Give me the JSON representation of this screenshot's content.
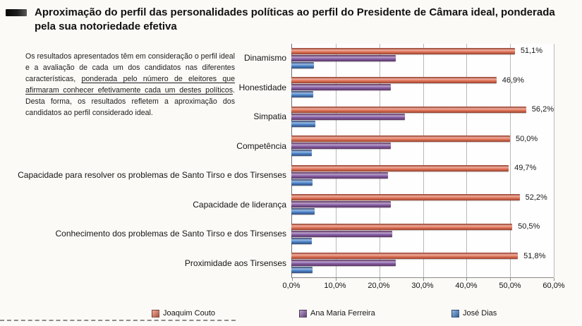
{
  "page": {
    "title": "Aproximação do perfil das personalidades políticas ao perfil do Presidente de Câmara ideal, ponderada pela sua notoriedade efetiva"
  },
  "note": {
    "part1": "Os resultados apresentados têm em consideração o perfil ideal e a avaliação de cada um dos candidatos nas diferentes características, ",
    "underlined": "ponderada pelo número de eleitores que afirmaram conhecer efetivamente cada um destes políticos",
    "part2": ". Desta forma, os resultados refletem a aproximação dos candidatos ao perfil considerado ideal."
  },
  "chart_data": {
    "type": "bar",
    "orientation": "horizontal-grouped",
    "categories": [
      "Dinamismo",
      "Honestidade",
      "Simpatia",
      "Competência",
      "Capacidade para resolver os problemas de Santo Tirso e dos Tirsenses",
      "Capacidade de liderança",
      "Conhecimento dos problemas de Santo Tirso e dos Tirsenses",
      "Proximidade aos Tirsenses"
    ],
    "series": [
      {
        "name": "Joaquim Couto",
        "color": "#e06a4c",
        "values": [
          51.1,
          46.9,
          56.2,
          50.0,
          49.7,
          52.2,
          50.5,
          51.8
        ],
        "data_labels": [
          "51,1%",
          "46,9%",
          "56,2%",
          "50,0%",
          "49,7%",
          "52,2%",
          "50,5%",
          "51,8%"
        ]
      },
      {
        "name": "Ana Maria Ferreira",
        "color": "#7d539f",
        "values": [
          23.9,
          22.8,
          25.9,
          22.8,
          22.1,
          22.8,
          23.0,
          23.9
        ]
      },
      {
        "name": "José Dias",
        "color": "#3f7dc8",
        "values": [
          5.2,
          5.0,
          5.5,
          4.7,
          4.9,
          5.3,
          4.7,
          4.9
        ]
      }
    ],
    "x_ticks": [
      "0,0%",
      "10,0%",
      "20,0%",
      "30,0%",
      "40,0%",
      "50,0%",
      "60,0%"
    ],
    "xlim": [
      0,
      60
    ],
    "grid": true,
    "legend_position": "bottom"
  }
}
